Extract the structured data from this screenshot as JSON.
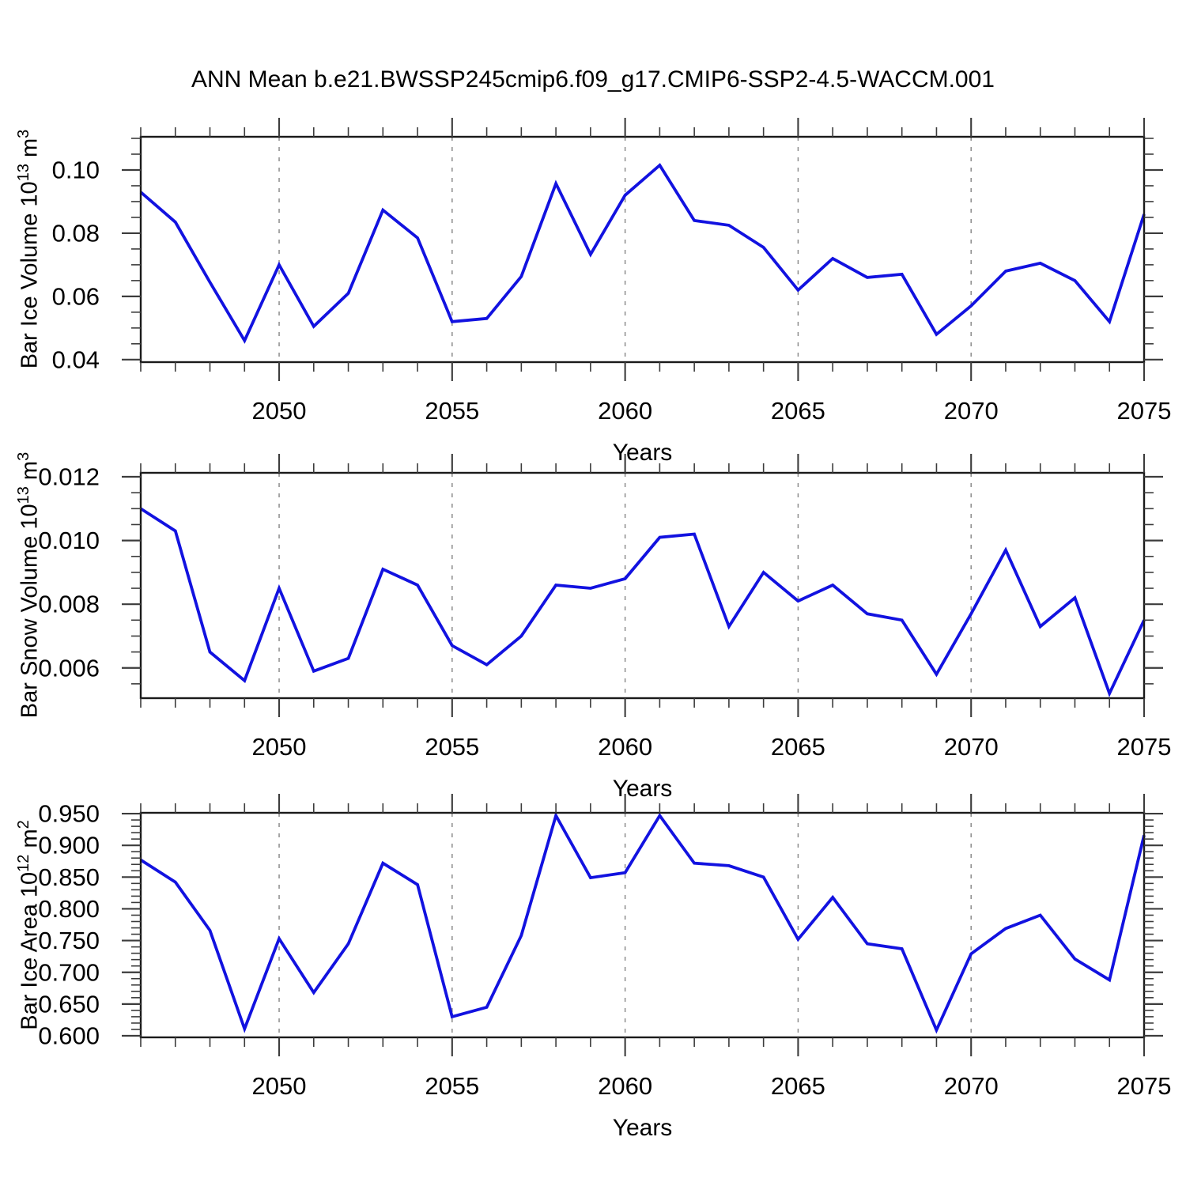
{
  "title": "ANN Mean b.e21.BWSSP245cmip6.f09_g17.CMIP6-SSP2-4.5-WACCM.001",
  "colors": {
    "line": "#1212E0",
    "grid": "#8C8C8C",
    "frame": "#1A1A1A",
    "tick": "#3C3C3C",
    "text": "#000000"
  },
  "chart_data": [
    {
      "type": "line",
      "name": "bar-ice-volume",
      "ylabel": "Bar Ice Volume 10^13 m^3",
      "ylabel_parts": {
        "base": "Bar Ice Volume 10",
        "exp": "13",
        "unit": " m",
        "unit_exp": "3"
      },
      "xlabel": "Years",
      "x": [
        2046,
        2047,
        2048,
        2049,
        2050,
        2051,
        2052,
        2053,
        2054,
        2055,
        2056,
        2057,
        2058,
        2059,
        2060,
        2061,
        2062,
        2063,
        2064,
        2065,
        2066,
        2067,
        2068,
        2069,
        2070,
        2071,
        2072,
        2073,
        2074,
        2075
      ],
      "values": [
        0.093,
        0.0835,
        0.0645,
        0.046,
        0.07,
        0.0505,
        0.061,
        0.0873,
        0.0785,
        0.052,
        0.053,
        0.0663,
        0.0957,
        0.0733,
        0.092,
        0.1015,
        0.084,
        0.0825,
        0.0755,
        0.062,
        0.072,
        0.066,
        0.067,
        0.048,
        0.057,
        0.068,
        0.0705,
        0.065,
        0.052,
        0.086
      ],
      "xlim": [
        2046,
        2075
      ],
      "ylim": [
        0.0392,
        0.1105
      ],
      "yticks": [
        0.04,
        0.06,
        0.08,
        0.1
      ],
      "ytick_labels": [
        "0.04",
        "0.06",
        "0.08",
        "0.10"
      ],
      "ytick_minor_step": 0.005,
      "xticks_major": [
        2050,
        2055,
        2060,
        2065,
        2070,
        2075
      ],
      "xtick_labels": [
        "2050",
        "2055",
        "2060",
        "2065",
        "2070",
        "2075"
      ],
      "grid_x": [
        2050,
        2055,
        2060,
        2065,
        2070
      ],
      "grid": "vertical-dashed",
      "legend": "none"
    },
    {
      "type": "line",
      "name": "bar-snow-volume",
      "ylabel": "Bar Snow Volume 10^13 m^3",
      "ylabel_parts": {
        "base": "Bar Snow Volume 10",
        "exp": "13",
        "unit": " m",
        "unit_exp": "3"
      },
      "xlabel": "Years",
      "x": [
        2046,
        2047,
        2048,
        2049,
        2050,
        2051,
        2052,
        2053,
        2054,
        2055,
        2056,
        2057,
        2058,
        2059,
        2060,
        2061,
        2062,
        2063,
        2064,
        2065,
        2066,
        2067,
        2068,
        2069,
        2070,
        2071,
        2072,
        2073,
        2074,
        2075
      ],
      "values": [
        0.011,
        0.0103,
        0.0065,
        0.0056,
        0.0085,
        0.0059,
        0.0063,
        0.0091,
        0.0086,
        0.0067,
        0.0061,
        0.007,
        0.0086,
        0.0085,
        0.0088,
        0.0101,
        0.0102,
        0.0073,
        0.009,
        0.0081,
        0.0086,
        0.0077,
        0.0075,
        0.0058,
        0.0077,
        0.0097,
        0.0073,
        0.0082,
        0.0052,
        0.0075
      ],
      "xlim": [
        2046,
        2075
      ],
      "ylim": [
        0.00505,
        0.012125
      ],
      "yticks": [
        0.006,
        0.008,
        0.01,
        0.012
      ],
      "ytick_labels": [
        "0.006",
        "0.008",
        "0.010",
        "0.012"
      ],
      "ytick_minor_step": 0.0005,
      "xticks_major": [
        2050,
        2055,
        2060,
        2065,
        2070,
        2075
      ],
      "xtick_labels": [
        "2050",
        "2055",
        "2060",
        "2065",
        "2070",
        "2075"
      ],
      "grid_x": [
        2050,
        2055,
        2060,
        2065,
        2070
      ],
      "grid": "vertical-dashed",
      "legend": "none"
    },
    {
      "type": "line",
      "name": "bar-ice-area",
      "ylabel": "Bar Ice Area 10^12 m^2",
      "ylabel_parts": {
        "base": "Bar Ice Area 10",
        "exp": "12",
        "unit": " m",
        "unit_exp": "2"
      },
      "xlabel": "Years",
      "x": [
        2046,
        2047,
        2048,
        2049,
        2050,
        2051,
        2052,
        2053,
        2054,
        2055,
        2056,
        2057,
        2058,
        2059,
        2060,
        2061,
        2062,
        2063,
        2064,
        2065,
        2066,
        2067,
        2068,
        2069,
        2070,
        2071,
        2072,
        2073,
        2074,
        2075
      ],
      "values": [
        0.877,
        0.842,
        0.766,
        0.611,
        0.753,
        0.668,
        0.745,
        0.872,
        0.838,
        0.63,
        0.645,
        0.758,
        0.947,
        0.849,
        0.857,
        0.947,
        0.872,
        0.868,
        0.85,
        0.752,
        0.818,
        0.745,
        0.737,
        0.609,
        0.729,
        0.769,
        0.79,
        0.721,
        0.688,
        0.916
      ],
      "xlim": [
        2046,
        2075
      ],
      "ylim": [
        0.5975,
        0.9513
      ],
      "yticks": [
        0.6,
        0.65,
        0.7,
        0.75,
        0.8,
        0.85,
        0.9,
        0.95
      ],
      "ytick_labels": [
        "0.600",
        "0.650",
        "0.700",
        "0.750",
        "0.800",
        "0.850",
        "0.900",
        "0.950"
      ],
      "ytick_minor_step": 0.01,
      "xticks_major": [
        2050,
        2055,
        2060,
        2065,
        2070,
        2075
      ],
      "xtick_labels": [
        "2050",
        "2055",
        "2060",
        "2065",
        "2070",
        "2075"
      ],
      "grid_x": [
        2050,
        2055,
        2060,
        2065,
        2070
      ],
      "grid": "vertical-dashed",
      "legend": "none"
    }
  ]
}
